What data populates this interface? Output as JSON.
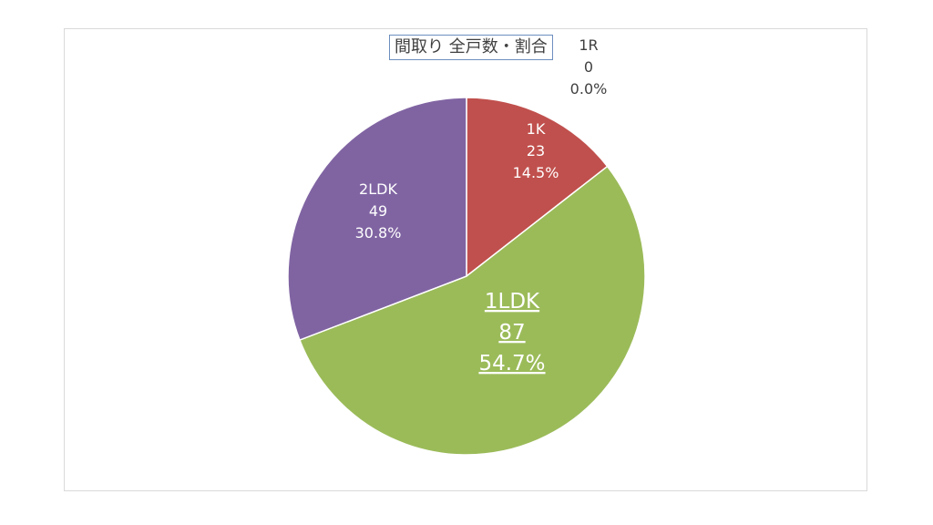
{
  "chart_data": {
    "type": "pie",
    "title": "間取り  全戸数・割合",
    "slices": [
      {
        "label": "1R",
        "value": 0,
        "percent": "0.0%",
        "color": "#4472c4"
      },
      {
        "label": "1K",
        "value": 23,
        "percent": "14.5%",
        "color": "#c0504d"
      },
      {
        "label": "1LDK",
        "value": 87,
        "percent": "54.7%",
        "color": "#9bbb59"
      },
      {
        "label": "2LDK",
        "value": 49,
        "percent": "30.8%",
        "color": "#8064a2"
      }
    ]
  }
}
